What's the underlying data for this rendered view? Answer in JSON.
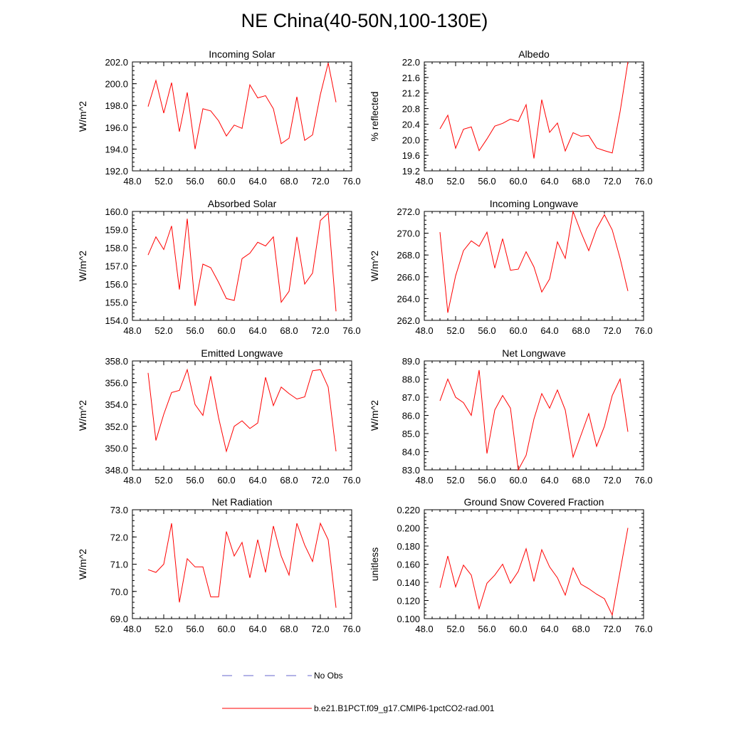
{
  "title": "NE China(40-50N,100-130E)",
  "legend": [
    {
      "label": "No Obs",
      "color": "#6666cc",
      "dash": true
    },
    {
      "label": "b.e21.B1PCT.f09_g17.CMIP6-1pctCO2-rad.001",
      "color": "#ff0000",
      "dash": false
    }
  ],
  "chart_data": [
    {
      "type": "line",
      "title": "Incoming Solar",
      "xlabel": "",
      "ylabel": "W/m^2",
      "xlim": [
        48,
        76
      ],
      "ylim": [
        192,
        202
      ],
      "xticks": [
        "48.0",
        "52.0",
        "56.0",
        "60.0",
        "64.0",
        "68.0",
        "72.0",
        "76.0"
      ],
      "yticks": [
        "192.0",
        "194.0",
        "196.0",
        "198.0",
        "200.0",
        "202.0"
      ],
      "series": [
        {
          "x": [
            50,
            51,
            52,
            53,
            54,
            55,
            56,
            57,
            58,
            59,
            60,
            61,
            62,
            63,
            64,
            65,
            66,
            67,
            68,
            69,
            70,
            71,
            72,
            73,
            74
          ],
          "values": [
            197.9,
            200.3,
            197.3,
            200.1,
            195.6,
            199.2,
            194.0,
            197.7,
            197.5,
            196.6,
            195.2,
            196.2,
            195.9,
            199.9,
            198.7,
            198.9,
            197.7,
            194.5,
            195.0,
            198.8,
            194.8,
            195.3,
            199.0,
            201.9,
            198.3
          ]
        }
      ]
    },
    {
      "type": "line",
      "title": "Albedo",
      "xlabel": "",
      "ylabel": "% reflected",
      "xlim": [
        48,
        76
      ],
      "ylim": [
        19.2,
        22.0
      ],
      "xticks": [
        "48.0",
        "52.0",
        "56.0",
        "60.0",
        "64.0",
        "68.0",
        "72.0",
        "76.0"
      ],
      "yticks": [
        "19.2",
        "19.6",
        "20.0",
        "20.4",
        "20.8",
        "21.2",
        "21.6",
        "22.0"
      ],
      "series": [
        {
          "x": [
            50,
            51,
            52,
            53,
            54,
            55,
            56,
            57,
            58,
            59,
            60,
            61,
            62,
            63,
            64,
            65,
            66,
            67,
            68,
            69,
            70,
            71,
            72,
            73,
            74
          ],
          "values": [
            20.28,
            20.63,
            19.78,
            20.27,
            20.33,
            19.72,
            20.02,
            20.35,
            20.42,
            20.53,
            20.47,
            20.9,
            19.52,
            21.03,
            20.19,
            20.43,
            19.71,
            20.18,
            20.09,
            20.11,
            19.79,
            19.72,
            19.66,
            20.72,
            22.0
          ]
        }
      ]
    },
    {
      "type": "line",
      "title": "Absorbed Solar",
      "xlabel": "",
      "ylabel": "W/m^2",
      "xlim": [
        48,
        76
      ],
      "ylim": [
        154,
        160
      ],
      "xticks": [
        "48.0",
        "52.0",
        "56.0",
        "60.0",
        "64.0",
        "68.0",
        "72.0",
        "76.0"
      ],
      "yticks": [
        "154.0",
        "155.0",
        "156.0",
        "157.0",
        "158.0",
        "159.0",
        "160.0"
      ],
      "series": [
        {
          "x": [
            50,
            51,
            52,
            53,
            54,
            55,
            56,
            57,
            58,
            59,
            60,
            61,
            62,
            63,
            64,
            65,
            66,
            67,
            68,
            69,
            70,
            71,
            72,
            73,
            74
          ],
          "values": [
            157.6,
            158.6,
            157.9,
            159.2,
            155.7,
            159.6,
            154.8,
            157.1,
            156.9,
            156.1,
            155.2,
            155.1,
            157.4,
            157.7,
            158.3,
            158.1,
            158.6,
            155.0,
            155.6,
            158.6,
            156.0,
            156.6,
            159.5,
            159.9,
            154.5
          ]
        }
      ]
    },
    {
      "type": "line",
      "title": "Incoming Longwave",
      "xlabel": "",
      "ylabel": "W/m^2",
      "xlim": [
        48,
        76
      ],
      "ylim": [
        262,
        272
      ],
      "xticks": [
        "48.0",
        "52.0",
        "56.0",
        "60.0",
        "64.0",
        "68.0",
        "72.0",
        "76.0"
      ],
      "yticks": [
        "262.0",
        "264.0",
        "266.0",
        "268.0",
        "270.0",
        "272.0"
      ],
      "series": [
        {
          "x": [
            50,
            51,
            52,
            53,
            54,
            55,
            56,
            57,
            58,
            59,
            60,
            61,
            62,
            63,
            64,
            65,
            66,
            67,
            68,
            69,
            70,
            71,
            72,
            73,
            74
          ],
          "values": [
            270.1,
            262.7,
            266.1,
            268.4,
            269.3,
            268.8,
            270.1,
            266.8,
            269.5,
            266.6,
            266.7,
            268.3,
            266.9,
            264.6,
            265.8,
            269.2,
            267.7,
            272.0,
            270.1,
            268.4,
            270.4,
            271.7,
            270.3,
            267.7,
            264.7
          ]
        }
      ]
    },
    {
      "type": "line",
      "title": "Emitted Longwave",
      "xlabel": "",
      "ylabel": "W/m^2",
      "xlim": [
        48,
        76
      ],
      "ylim": [
        348,
        358
      ],
      "xticks": [
        "48.0",
        "52.0",
        "56.0",
        "60.0",
        "64.0",
        "68.0",
        "72.0",
        "76.0"
      ],
      "yticks": [
        "348.0",
        "350.0",
        "352.0",
        "354.0",
        "356.0",
        "358.0"
      ],
      "series": [
        {
          "x": [
            50,
            51,
            52,
            53,
            54,
            55,
            56,
            57,
            58,
            59,
            60,
            61,
            62,
            63,
            64,
            65,
            66,
            67,
            68,
            69,
            70,
            71,
            72,
            73,
            74
          ],
          "values": [
            356.9,
            350.7,
            353.1,
            355.1,
            355.3,
            357.2,
            354.0,
            353.0,
            356.6,
            352.8,
            349.7,
            352.0,
            352.5,
            351.8,
            352.3,
            356.5,
            353.9,
            355.6,
            355.0,
            354.5,
            354.7,
            357.1,
            357.2,
            355.6,
            349.7
          ]
        }
      ]
    },
    {
      "type": "line",
      "title": "Net Longwave",
      "xlabel": "",
      "ylabel": "W/m^2",
      "xlim": [
        48,
        76
      ],
      "ylim": [
        83,
        89
      ],
      "xticks": [
        "48.0",
        "52.0",
        "56.0",
        "60.0",
        "64.0",
        "68.0",
        "72.0",
        "76.0"
      ],
      "yticks": [
        "83.0",
        "84.0",
        "85.0",
        "86.0",
        "87.0",
        "88.0",
        "89.0"
      ],
      "series": [
        {
          "x": [
            50,
            51,
            52,
            53,
            54,
            55,
            56,
            57,
            58,
            59,
            60,
            61,
            62,
            63,
            64,
            65,
            66,
            67,
            68,
            69,
            70,
            71,
            72,
            73,
            74
          ],
          "values": [
            86.8,
            88.0,
            87.0,
            86.7,
            86.0,
            88.5,
            83.9,
            86.3,
            87.1,
            86.4,
            83.0,
            83.8,
            85.8,
            87.2,
            86.4,
            87.4,
            86.3,
            83.7,
            84.9,
            86.1,
            84.3,
            85.4,
            87.1,
            88.0,
            85.1
          ]
        }
      ]
    },
    {
      "type": "line",
      "title": "Net Radiation",
      "xlabel": "",
      "ylabel": "W/m^2",
      "xlim": [
        48,
        76
      ],
      "ylim": [
        69,
        73
      ],
      "xticks": [
        "48.0",
        "52.0",
        "56.0",
        "60.0",
        "64.0",
        "68.0",
        "72.0",
        "76.0"
      ],
      "yticks": [
        "69.0",
        "70.0",
        "71.0",
        "72.0",
        "73.0"
      ],
      "series": [
        {
          "x": [
            50,
            51,
            52,
            53,
            54,
            55,
            56,
            57,
            58,
            59,
            60,
            61,
            62,
            63,
            64,
            65,
            66,
            67,
            68,
            69,
            70,
            71,
            72,
            73,
            74
          ],
          "values": [
            70.8,
            70.7,
            71.0,
            72.5,
            69.6,
            71.2,
            70.9,
            70.9,
            69.8,
            69.8,
            72.2,
            71.3,
            71.8,
            70.5,
            71.9,
            70.7,
            72.4,
            71.3,
            70.6,
            72.5,
            71.7,
            71.1,
            72.5,
            71.9,
            69.4
          ]
        }
      ]
    },
    {
      "type": "line",
      "title": "Ground Snow Covered Fraction",
      "xlabel": "",
      "ylabel": "unitless",
      "xlim": [
        48,
        76
      ],
      "ylim": [
        0.1,
        0.22
      ],
      "xticks": [
        "48.0",
        "52.0",
        "56.0",
        "60.0",
        "64.0",
        "68.0",
        "72.0",
        "76.0"
      ],
      "yticks": [
        "0.100",
        "0.120",
        "0.140",
        "0.160",
        "0.180",
        "0.200",
        "0.220"
      ],
      "series": [
        {
          "x": [
            50,
            51,
            52,
            53,
            54,
            55,
            56,
            57,
            58,
            59,
            60,
            61,
            62,
            63,
            64,
            65,
            66,
            67,
            68,
            69,
            70,
            71,
            72,
            73,
            74
          ],
          "values": [
            0.134,
            0.169,
            0.135,
            0.159,
            0.148,
            0.111,
            0.139,
            0.148,
            0.16,
            0.139,
            0.152,
            0.177,
            0.141,
            0.176,
            0.157,
            0.145,
            0.126,
            0.156,
            0.138,
            0.133,
            0.127,
            0.122,
            0.104,
            0.152,
            0.2
          ]
        }
      ]
    }
  ]
}
